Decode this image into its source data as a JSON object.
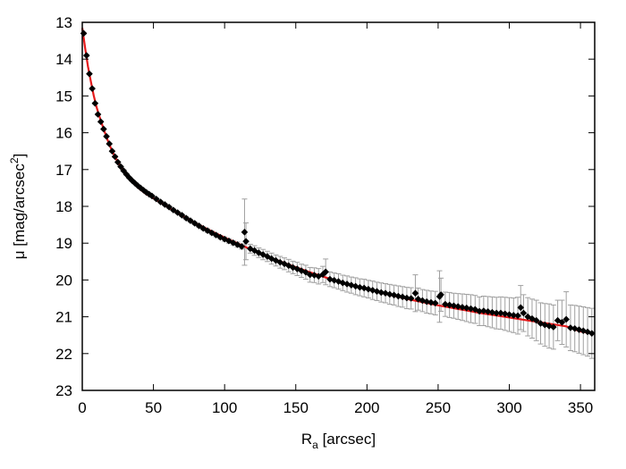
{
  "chart_data": {
    "type": "scatter",
    "xlabel": "R",
    "xlabel_sub": "a",
    "xlabel_unit": " [arcsec]",
    "ylabel": "μ [mag/arcsec",
    "ylabel_sup": "2",
    "ylabel_close": "]",
    "xlim": [
      0,
      360
    ],
    "ylim": [
      23,
      13
    ],
    "y_inverted": true,
    "x_ticks": [
      0,
      50,
      100,
      150,
      200,
      250,
      300,
      350
    ],
    "y_ticks": [
      13,
      14,
      15,
      16,
      17,
      18,
      19,
      20,
      21,
      22,
      23
    ],
    "grid": false,
    "colors": {
      "points": "#000000",
      "fit": "#e41a1c",
      "error_bars": "#a0a0a0"
    },
    "series": [
      {
        "kind": "points",
        "marker": "diamond",
        "x": [
          1,
          3,
          5,
          7,
          9,
          11,
          13,
          15,
          17,
          19,
          21,
          23,
          25,
          27,
          29,
          31,
          33,
          35,
          37,
          39,
          41,
          43,
          45,
          47,
          49,
          52,
          55,
          58,
          61,
          64,
          67,
          70,
          73,
          76,
          79,
          82,
          85,
          88,
          91,
          94,
          97,
          100,
          103,
          106,
          109,
          112,
          114,
          115,
          118,
          121,
          124,
          127,
          130,
          133,
          136,
          139,
          142,
          145,
          148,
          151,
          154,
          157,
          160,
          163,
          166,
          169,
          171,
          174,
          177,
          180,
          183,
          186,
          189,
          192,
          195,
          198,
          201,
          204,
          207,
          210,
          213,
          216,
          219,
          222,
          225,
          228,
          231,
          234,
          236,
          239,
          242,
          245,
          248,
          251,
          252,
          255,
          258,
          261,
          264,
          267,
          270,
          273,
          276,
          279,
          282,
          285,
          288,
          291,
          294,
          297,
          300,
          303,
          306,
          308,
          310,
          313,
          316,
          319,
          322,
          325,
          328,
          331,
          334,
          337,
          340,
          343,
          346,
          349,
          352,
          355,
          358
        ],
        "y": [
          13.3,
          13.9,
          14.4,
          14.8,
          15.2,
          15.5,
          15.7,
          15.9,
          16.1,
          16.3,
          16.5,
          16.65,
          16.8,
          16.92,
          17.03,
          17.13,
          17.22,
          17.3,
          17.37,
          17.44,
          17.5,
          17.56,
          17.62,
          17.67,
          17.72,
          17.8,
          17.88,
          17.95,
          18.02,
          18.1,
          18.17,
          18.24,
          18.32,
          18.39,
          18.46,
          18.53,
          18.6,
          18.66,
          18.72,
          18.78,
          18.84,
          18.89,
          18.94,
          18.99,
          19.04,
          19.09,
          18.7,
          18.95,
          19.15,
          19.2,
          19.26,
          19.31,
          19.36,
          19.42,
          19.47,
          19.52,
          19.56,
          19.61,
          19.66,
          19.7,
          19.75,
          19.79,
          19.86,
          19.87,
          19.9,
          19.85,
          19.78,
          19.98,
          20.01,
          20.04,
          20.08,
          20.11,
          20.14,
          20.17,
          20.2,
          20.22,
          20.25,
          20.28,
          20.31,
          20.34,
          20.36,
          20.39,
          20.41,
          20.44,
          20.46,
          20.49,
          20.5,
          20.36,
          20.52,
          20.56,
          20.59,
          20.61,
          20.63,
          20.45,
          20.4,
          20.66,
          20.68,
          20.7,
          20.72,
          20.74,
          20.76,
          20.78,
          20.8,
          20.85,
          20.84,
          20.86,
          20.88,
          20.9,
          20.9,
          20.92,
          20.94,
          20.96,
          20.97,
          20.75,
          20.9,
          21.0,
          21.05,
          21.1,
          21.18,
          21.22,
          21.25,
          21.28,
          21.1,
          21.15,
          21.07,
          21.3,
          21.32,
          21.35,
          21.38,
          21.41,
          21.45
        ],
        "err": [
          0.02,
          0.02,
          0.02,
          0.02,
          0.02,
          0.02,
          0.02,
          0.02,
          0.02,
          0.02,
          0.02,
          0.02,
          0.02,
          0.02,
          0.02,
          0.02,
          0.02,
          0.02,
          0.02,
          0.02,
          0.02,
          0.02,
          0.03,
          0.03,
          0.03,
          0.03,
          0.03,
          0.03,
          0.03,
          0.03,
          0.03,
          0.04,
          0.04,
          0.04,
          0.04,
          0.04,
          0.04,
          0.05,
          0.05,
          0.05,
          0.05,
          0.06,
          0.06,
          0.06,
          0.07,
          0.07,
          0.9,
          0.5,
          0.12,
          0.13,
          0.13,
          0.14,
          0.14,
          0.15,
          0.15,
          0.16,
          0.16,
          0.17,
          0.17,
          0.18,
          0.18,
          0.19,
          0.2,
          0.2,
          0.21,
          0.22,
          0.35,
          0.2,
          0.2,
          0.21,
          0.21,
          0.22,
          0.22,
          0.23,
          0.23,
          0.24,
          0.24,
          0.25,
          0.25,
          0.26,
          0.26,
          0.27,
          0.27,
          0.28,
          0.28,
          0.29,
          0.29,
          0.5,
          0.3,
          0.3,
          0.31,
          0.31,
          0.32,
          0.7,
          0.45,
          0.33,
          0.34,
          0.34,
          0.35,
          0.36,
          0.37,
          0.38,
          0.38,
          0.39,
          0.4,
          0.41,
          0.42,
          0.43,
          0.44,
          0.45,
          0.46,
          0.47,
          0.5,
          0.6,
          0.5,
          0.52,
          0.53,
          0.55,
          0.56,
          0.58,
          0.6,
          0.6,
          0.55,
          0.6,
          0.75,
          0.62,
          0.63,
          0.64,
          0.65,
          0.66,
          0.68
        ]
      },
      {
        "kind": "fit",
        "style": "line",
        "x": [
          0,
          2,
          4,
          6,
          8,
          10,
          12,
          15,
          18,
          21,
          24,
          27,
          30,
          35,
          40,
          45,
          50,
          60,
          70,
          80,
          90,
          100,
          110,
          120,
          130,
          140,
          150,
          160,
          170,
          180,
          190,
          200,
          210,
          220,
          230,
          240,
          250,
          260,
          270,
          280,
          290,
          300,
          310,
          320,
          330,
          340,
          350,
          358
        ],
        "y": [
          13.15,
          13.7,
          14.2,
          14.6,
          14.98,
          15.3,
          15.55,
          15.9,
          16.22,
          16.5,
          16.73,
          16.92,
          17.08,
          17.32,
          17.52,
          17.67,
          17.78,
          18.02,
          18.25,
          18.46,
          18.66,
          18.85,
          19.02,
          19.2,
          19.36,
          19.51,
          19.65,
          19.79,
          19.92,
          20.04,
          20.15,
          20.25,
          20.35,
          20.44,
          20.53,
          20.61,
          20.69,
          20.76,
          20.83,
          20.9,
          20.96,
          21.02,
          21.08,
          21.14,
          21.2,
          21.26,
          21.4,
          21.45
        ]
      }
    ]
  }
}
